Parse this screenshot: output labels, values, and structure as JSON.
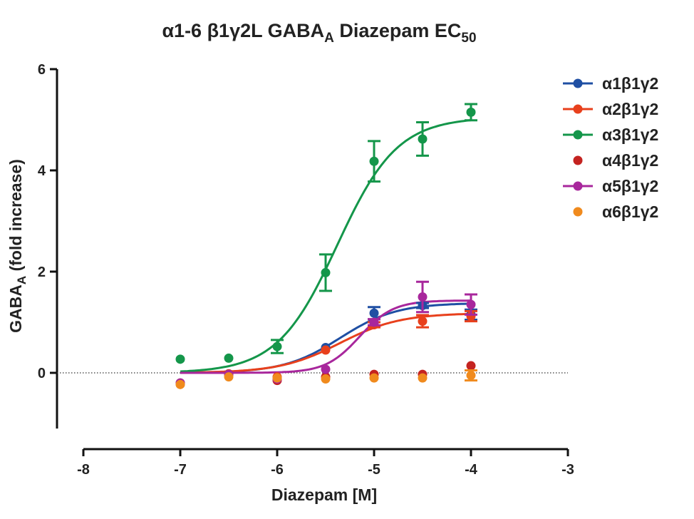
{
  "chart_data": {
    "type": "scatter",
    "title": {
      "prefix": "α1-6 β1γ2L GABA",
      "sub": "A",
      "middle": " Diazepam EC",
      "sub2": "50"
    },
    "xlabel": "Diazepam [M]",
    "ylabel": {
      "main": "GABA",
      "sub": "A",
      "rest": " (fold increase)"
    },
    "xlim": [
      -8,
      -3
    ],
    "ylim": [
      -1.1,
      6
    ],
    "xticks": [
      -8,
      -7,
      -6,
      -5,
      -4,
      -3
    ],
    "xtick_labels": [
      "-8",
      "-7",
      "-6",
      "-5",
      "-4",
      "-3"
    ],
    "yticks": [
      0,
      2,
      4,
      6
    ],
    "ytick_labels": [
      "0",
      "2",
      "4",
      "6"
    ],
    "grid": false,
    "baseline": {
      "y": 0,
      "style": "dotted"
    },
    "legend_position": "right",
    "series": [
      {
        "name": "α1β1γ2",
        "color": "#1f4fa3",
        "has_curve": true,
        "x": [
          -7,
          -6.5,
          -6,
          -5.5,
          -5,
          -4.5,
          -4
        ],
        "y": [
          -0.2,
          -0.02,
          -0.1,
          0.5,
          1.18,
          1.33,
          1.15
        ],
        "err": [
          0,
          0,
          0,
          0,
          0.12,
          0.05,
          0.1
        ],
        "curve": {
          "bottom": 0,
          "top": 1.38,
          "logEC50": -5.35,
          "hill": 1.5
        }
      },
      {
        "name": "α2β1γ2",
        "color": "#e8401c",
        "has_curve": true,
        "x": [
          -7,
          -6.5,
          -6,
          -5.5,
          -5,
          -4.5,
          -4
        ],
        "y": [
          -0.2,
          -0.02,
          -0.08,
          0.45,
          0.95,
          1.02,
          1.12
        ],
        "err": [
          0,
          0,
          0,
          0,
          0.05,
          0.12,
          0.1
        ],
        "curve": {
          "bottom": 0,
          "top": 1.18,
          "logEC50": -5.35,
          "hill": 1.4
        }
      },
      {
        "name": "α3β1γ2",
        "color": "#14964a",
        "has_curve": true,
        "x": [
          -7,
          -6.5,
          -6,
          -5.5,
          -5,
          -4.5,
          -4
        ],
        "y": [
          0.27,
          0.29,
          0.52,
          1.98,
          4.18,
          4.62,
          5.15
        ],
        "err": [
          0,
          0,
          0.13,
          0.36,
          0.4,
          0.33,
          0.16
        ],
        "curve": {
          "bottom": 0,
          "top": 5.05,
          "logEC50": -5.38,
          "hill": 1.4
        }
      },
      {
        "name": "α4β1γ2",
        "color": "#c42320",
        "has_curve": false,
        "x": [
          -7,
          -6.5,
          -6,
          -5.5,
          -5,
          -4.5,
          -4
        ],
        "y": [
          -0.22,
          -0.03,
          -0.15,
          -0.08,
          -0.03,
          -0.03,
          0.14
        ],
        "err": [
          0,
          0,
          0,
          0,
          0,
          0,
          0
        ]
      },
      {
        "name": "α5β1γ2",
        "color": "#a8279c",
        "has_curve": true,
        "x": [
          -7,
          -6.5,
          -6,
          -5.5,
          -5,
          -4.5,
          -4
        ],
        "y": [
          -0.2,
          -0.03,
          -0.12,
          0.07,
          1.0,
          1.5,
          1.35
        ],
        "err": [
          0,
          0,
          0,
          0,
          0.06,
          0.3,
          0.2
        ],
        "curve": {
          "bottom": 0,
          "top": 1.43,
          "logEC50": -5.15,
          "hill": 2.5
        }
      },
      {
        "name": "α6β1γ2",
        "color": "#f08a1d",
        "has_curve": false,
        "x": [
          -7,
          -6.5,
          -6,
          -5.5,
          -5,
          -4.5,
          -4
        ],
        "y": [
          -0.23,
          -0.08,
          -0.1,
          -0.12,
          -0.1,
          -0.1,
          -0.05
        ],
        "err": [
          0,
          0,
          0,
          0,
          0,
          0,
          0.1
        ]
      }
    ]
  }
}
